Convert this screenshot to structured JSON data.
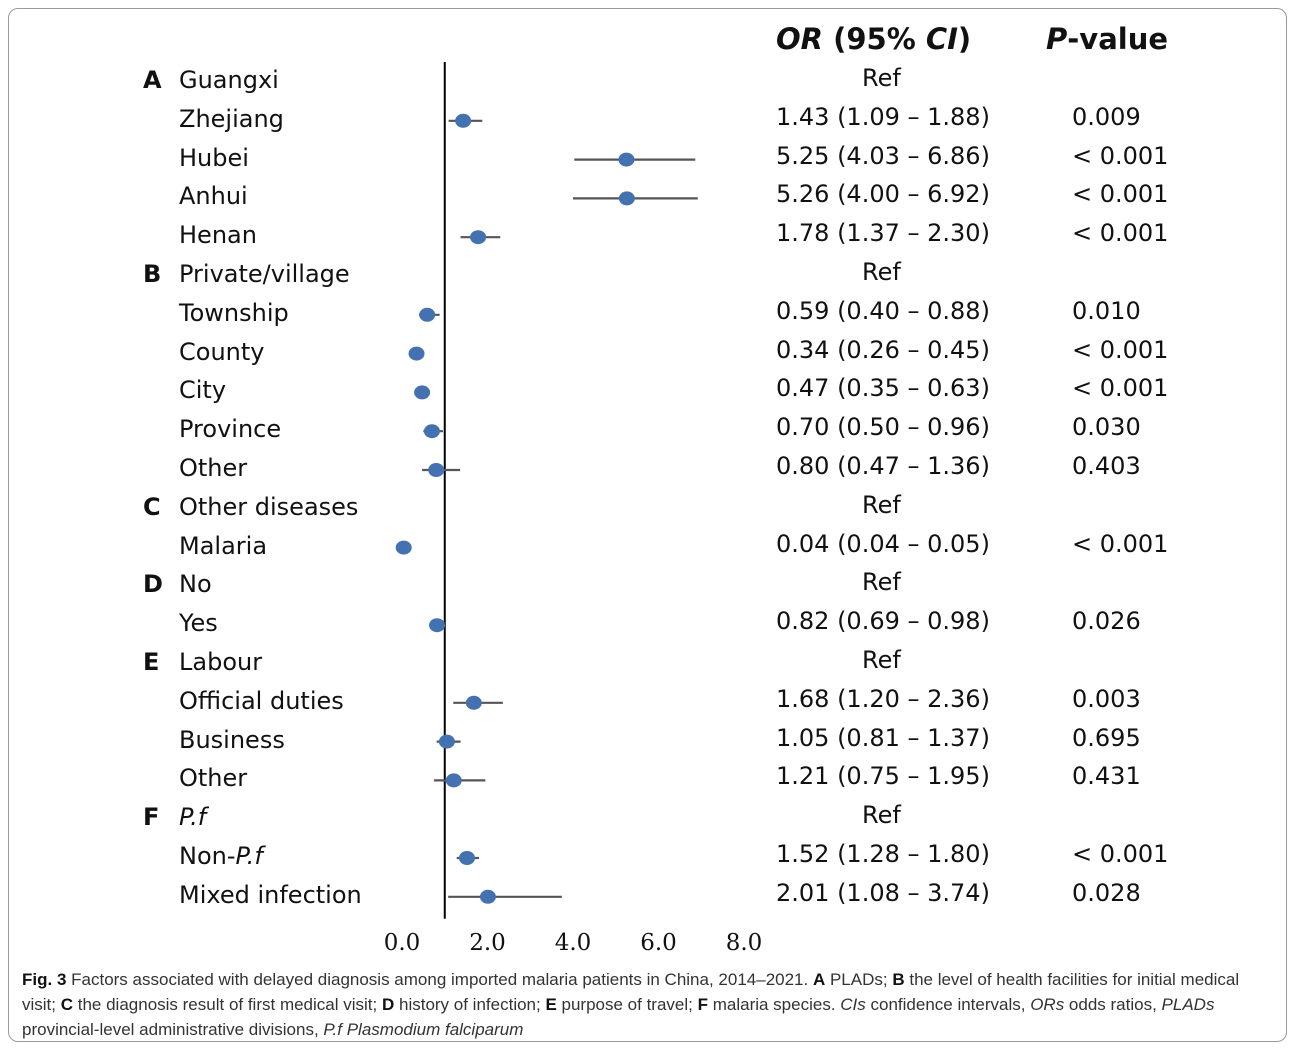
{
  "headers": {
    "or_prefix": "OR",
    "or_open": " (95% ",
    "or_ci": "CI",
    "or_close": ")",
    "p_letter": "P",
    "p_suffix": "-value"
  },
  "chart_data": {
    "type": "forest",
    "title": "",
    "xlabel": "",
    "ylabel": "",
    "xlim": [
      0,
      8
    ],
    "reference_line": 1,
    "x_ticks": [
      "0.0",
      "2.0",
      "4.0",
      "6.0",
      "8.0"
    ],
    "marker_color": "#4472b0",
    "rows": [
      {
        "group": "A",
        "label": "Guangxi",
        "ref": "Ref"
      },
      {
        "label": "Zhejiang",
        "or": 1.43,
        "lo": 1.09,
        "hi": 1.88,
        "or_text": "1.43 (1.09 – 1.88)",
        "p": "0.009"
      },
      {
        "label": "Hubei",
        "or": 5.25,
        "lo": 4.03,
        "hi": 6.86,
        "or_text": "5.25 (4.03 – 6.86)",
        "p": "< 0.001"
      },
      {
        "label": "Anhui",
        "or": 5.26,
        "lo": 4.0,
        "hi": 6.92,
        "or_text": "5.26 (4.00 – 6.92)",
        "p": "< 0.001"
      },
      {
        "label": "Henan",
        "or": 1.78,
        "lo": 1.37,
        "hi": 2.3,
        "or_text": "1.78 (1.37 – 2.30)",
        "p": "< 0.001"
      },
      {
        "group": "B",
        "label": "Private/village",
        "ref": "Ref"
      },
      {
        "label": "Township",
        "or": 0.59,
        "lo": 0.4,
        "hi": 0.88,
        "or_text": "0.59 (0.40 – 0.88)",
        "p": "0.010"
      },
      {
        "label": "County",
        "or": 0.34,
        "lo": 0.26,
        "hi": 0.45,
        "or_text": "0.34 (0.26 – 0.45)",
        "p": "< 0.001"
      },
      {
        "label": "City",
        "or": 0.47,
        "lo": 0.35,
        "hi": 0.63,
        "or_text": "0.47 (0.35 – 0.63)",
        "p": "< 0.001"
      },
      {
        "label": "Province",
        "or": 0.7,
        "lo": 0.5,
        "hi": 0.96,
        "or_text": "0.70 (0.50 – 0.96)",
        "p": "0.030"
      },
      {
        "label": "Other",
        "or": 0.8,
        "lo": 0.47,
        "hi": 1.36,
        "or_text": "0.80 (0.47 – 1.36)",
        "p": "0.403"
      },
      {
        "group": "C",
        "label": "Other diseases",
        "ref": "Ref"
      },
      {
        "label": "Malaria",
        "or": 0.04,
        "lo": 0.04,
        "hi": 0.05,
        "or_text": "0.04 (0.04 – 0.05)",
        "p": "< 0.001"
      },
      {
        "group": "D",
        "label": "No",
        "ref": "Ref"
      },
      {
        "label": "Yes",
        "or": 0.82,
        "lo": 0.69,
        "hi": 0.98,
        "or_text": "0.82 (0.69 – 0.98)",
        "p": "0.026"
      },
      {
        "group": "E",
        "label": "Labour",
        "ref": "Ref"
      },
      {
        "label": "Official duties",
        "or": 1.68,
        "lo": 1.2,
        "hi": 2.36,
        "or_text": "1.68 (1.20 – 2.36)",
        "p": "0.003"
      },
      {
        "label": "Business",
        "or": 1.05,
        "lo": 0.81,
        "hi": 1.37,
        "or_text": "1.05 (0.81 – 1.37)",
        "p": "0.695"
      },
      {
        "label": "Other",
        "or": 1.21,
        "lo": 0.75,
        "hi": 1.95,
        "or_text": "1.21 (0.75 – 1.95)",
        "p": "0.431"
      },
      {
        "group": "F",
        "label": "P.f",
        "italic": true,
        "ref": "Ref"
      },
      {
        "label_prefix": "Non-",
        "label_italic": "P.f",
        "or": 1.52,
        "lo": 1.28,
        "hi": 1.8,
        "or_text": "1.52 (1.28 – 1.80)",
        "p": "< 0.001"
      },
      {
        "label": "Mixed infection",
        "or": 2.01,
        "lo": 1.08,
        "hi": 3.74,
        "or_text": "2.01 (1.08 – 3.74)",
        "p": "0.028"
      }
    ]
  },
  "caption": {
    "fig": "Fig. 3",
    "t1": "  Factors associated with delayed diagnosis among imported malaria patients in China, 2014–2021. ",
    "A": "A",
    "tA": " PLADs; ",
    "B": "B",
    "tB": " the level of health facilities for initial medical visit; ",
    "C": "C",
    "tC": " the diagnosis result of first medical visit; ",
    "D": "D",
    "tD": " history of infection; ",
    "E": "E",
    "tE": " purpose of travel; ",
    "F": "F",
    "tF": " malaria species.  ",
    "cis_abbr": "CIs",
    "cis_def": " confidence intervals, ",
    "ors_abbr": "ORs",
    "ors_def": " odds ratios, ",
    "plads_abbr": "PLADs",
    "plads_def": " provincial-level administrative divisions, ",
    "pf_abbr": "P.f",
    "pf_def": " Plasmodium falciparum"
  }
}
